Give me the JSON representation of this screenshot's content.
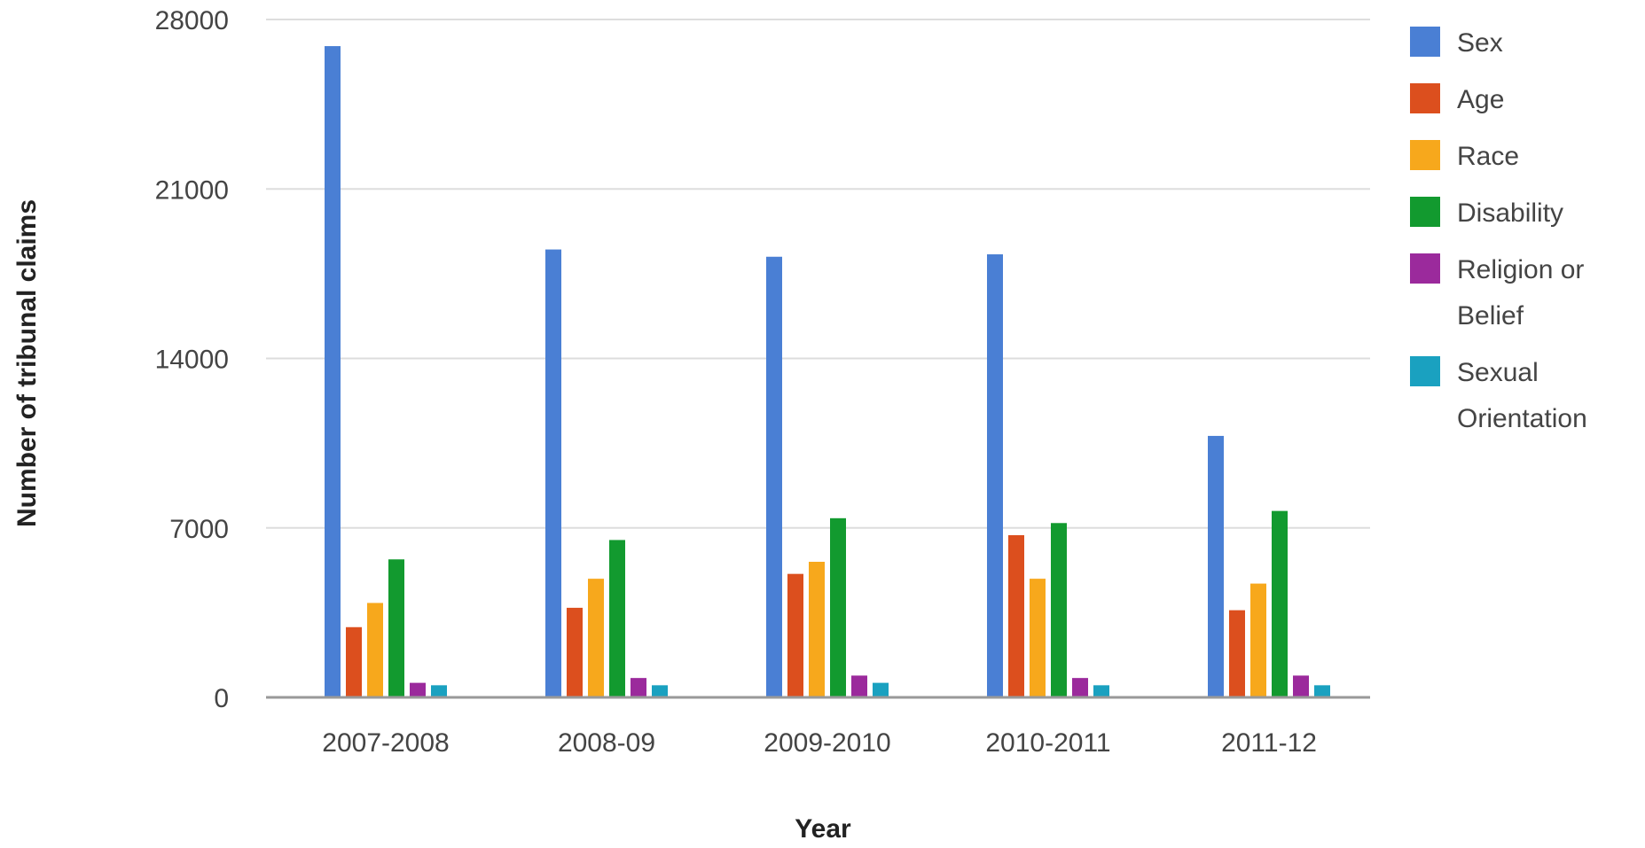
{
  "chart_data": {
    "type": "bar",
    "title": "",
    "xlabel": "Year",
    "ylabel": "Number of tribunal claims",
    "ylim": [
      0,
      28000
    ],
    "yticks": [
      0,
      7000,
      14000,
      21000,
      28000
    ],
    "grid": true,
    "legend_position": "right",
    "categories": [
      "2007-2008",
      "2008-09",
      "2009-2010",
      "2010-2011",
      "2011-12"
    ],
    "series": [
      {
        "name": "Sex",
        "color": "#4a7fd4",
        "values": [
          26900,
          18500,
          18200,
          18300,
          10800
        ]
      },
      {
        "name": "Age",
        "color": "#dc4f1e",
        "values": [
          2900,
          3700,
          5100,
          6700,
          3600
        ]
      },
      {
        "name": "Race",
        "color": "#f7a81c",
        "values": [
          3900,
          4900,
          5600,
          4900,
          4700
        ]
      },
      {
        "name": "Disability",
        "color": "#129a2f",
        "values": [
          5700,
          6500,
          7400,
          7200,
          7700
        ]
      },
      {
        "name": "Religion or Belief",
        "color": "#9b2a9c",
        "values": [
          600,
          800,
          900,
          800,
          900
        ]
      },
      {
        "name": "Sexual Orientation",
        "color": "#1aa1c0",
        "values": [
          500,
          500,
          600,
          500,
          500
        ]
      }
    ]
  }
}
